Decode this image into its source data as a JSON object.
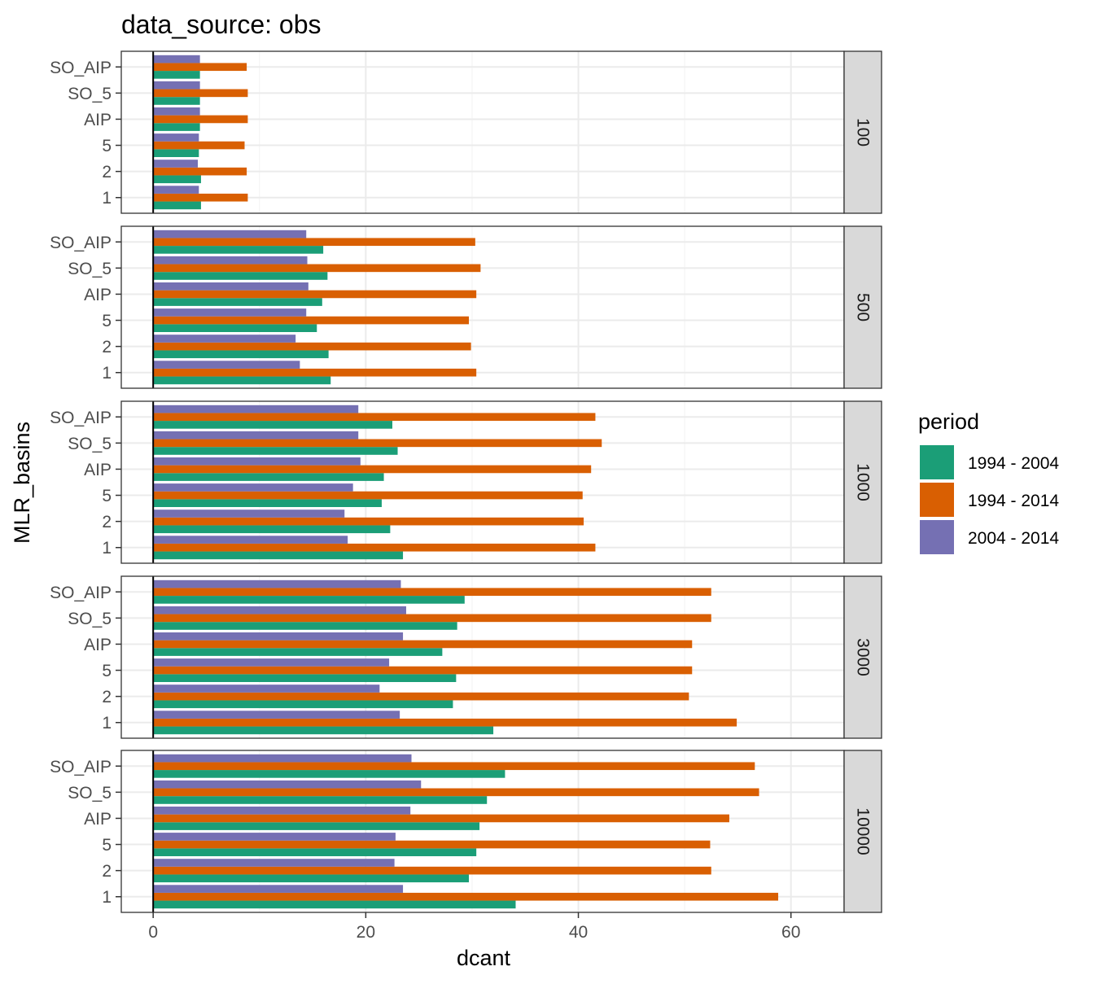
{
  "chart_data": {
    "type": "bar",
    "orientation": "horizontal",
    "title": "data_source: obs",
    "xlabel": "dcant",
    "ylabel": "MLR_basins",
    "xlim": [
      -3,
      65
    ],
    "x_ticks": [
      0,
      20,
      40,
      60
    ],
    "grid": true,
    "legend_title": "period",
    "legend_position": "right",
    "categories": [
      "1",
      "2",
      "5",
      "AIP",
      "SO_5",
      "SO_AIP"
    ],
    "facet_labels": [
      "100",
      "500",
      "1000",
      "3000",
      "10000"
    ],
    "series_names": [
      "1994 - 2004",
      "1994 - 2014",
      "2004 - 2014"
    ],
    "colors": {
      "1994 - 2004": "#1b9e77",
      "1994 - 2014": "#d95f02",
      "2004 - 2014": "#7570b3"
    },
    "facets": [
      {
        "label": "100",
        "series": [
          {
            "name": "1994 - 2004",
            "values": [
              4.5,
              4.5,
              4.3,
              4.4,
              4.4,
              4.4
            ]
          },
          {
            "name": "1994 - 2014",
            "values": [
              8.9,
              8.8,
              8.6,
              8.9,
              8.9,
              8.8
            ]
          },
          {
            "name": "2004 - 2014",
            "values": [
              4.3,
              4.2,
              4.3,
              4.4,
              4.4,
              4.4
            ]
          }
        ]
      },
      {
        "label": "500",
        "series": [
          {
            "name": "1994 - 2004",
            "values": [
              16.7,
              16.5,
              15.4,
              15.9,
              16.4,
              16.0
            ]
          },
          {
            "name": "1994 - 2014",
            "values": [
              30.4,
              29.9,
              29.7,
              30.4,
              30.8,
              30.3
            ]
          },
          {
            "name": "2004 - 2014",
            "values": [
              13.8,
              13.4,
              14.4,
              14.6,
              14.5,
              14.4
            ]
          }
        ]
      },
      {
        "label": "1000",
        "series": [
          {
            "name": "1994 - 2004",
            "values": [
              23.5,
              22.3,
              21.5,
              21.7,
              23.0,
              22.5
            ]
          },
          {
            "name": "1994 - 2014",
            "values": [
              41.6,
              40.5,
              40.4,
              41.2,
              42.2,
              41.6
            ]
          },
          {
            "name": "2004 - 2014",
            "values": [
              18.3,
              18.0,
              18.8,
              19.5,
              19.3,
              19.3
            ]
          }
        ]
      },
      {
        "label": "3000",
        "series": [
          {
            "name": "1994 - 2004",
            "values": [
              32.0,
              28.2,
              28.5,
              27.2,
              28.6,
              29.3
            ]
          },
          {
            "name": "1994 - 2014",
            "values": [
              54.9,
              50.4,
              50.7,
              50.7,
              52.5,
              52.5
            ]
          },
          {
            "name": "2004 - 2014",
            "values": [
              23.2,
              21.3,
              22.2,
              23.5,
              23.8,
              23.3
            ]
          }
        ]
      },
      {
        "label": "10000",
        "series": [
          {
            "name": "1994 - 2004",
            "values": [
              34.1,
              29.7,
              30.4,
              30.7,
              31.4,
              33.1
            ]
          },
          {
            "name": "1994 - 2014",
            "values": [
              58.8,
              52.5,
              52.4,
              54.2,
              57.0,
              56.6
            ]
          },
          {
            "name": "2004 - 2014",
            "values": [
              23.5,
              22.7,
              22.8,
              24.2,
              25.2,
              24.3
            ]
          }
        ]
      }
    ]
  }
}
